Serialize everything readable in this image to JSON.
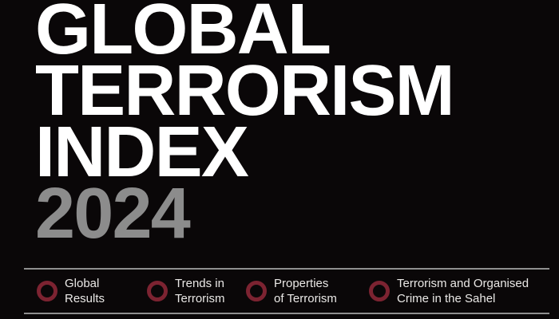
{
  "cover": {
    "title_lines": [
      "GLOBAL",
      "TERRORISM",
      "INDEX"
    ],
    "year": "2024"
  },
  "nav": {
    "items": [
      {
        "label": "Global\nResults"
      },
      {
        "label": "Trends in\nTerrorism"
      },
      {
        "label": "Properties\nof Terrorism"
      },
      {
        "label": "Terrorism and Organised\nCrime in the Sahel"
      }
    ]
  },
  "colors": {
    "background": "#0a0708",
    "title_text": "#ffffff",
    "year_text": "#8c8c8c",
    "section_ring": "#7c2331",
    "divider_line": "#8f8f8f",
    "nav_text": "#eae8e6"
  }
}
